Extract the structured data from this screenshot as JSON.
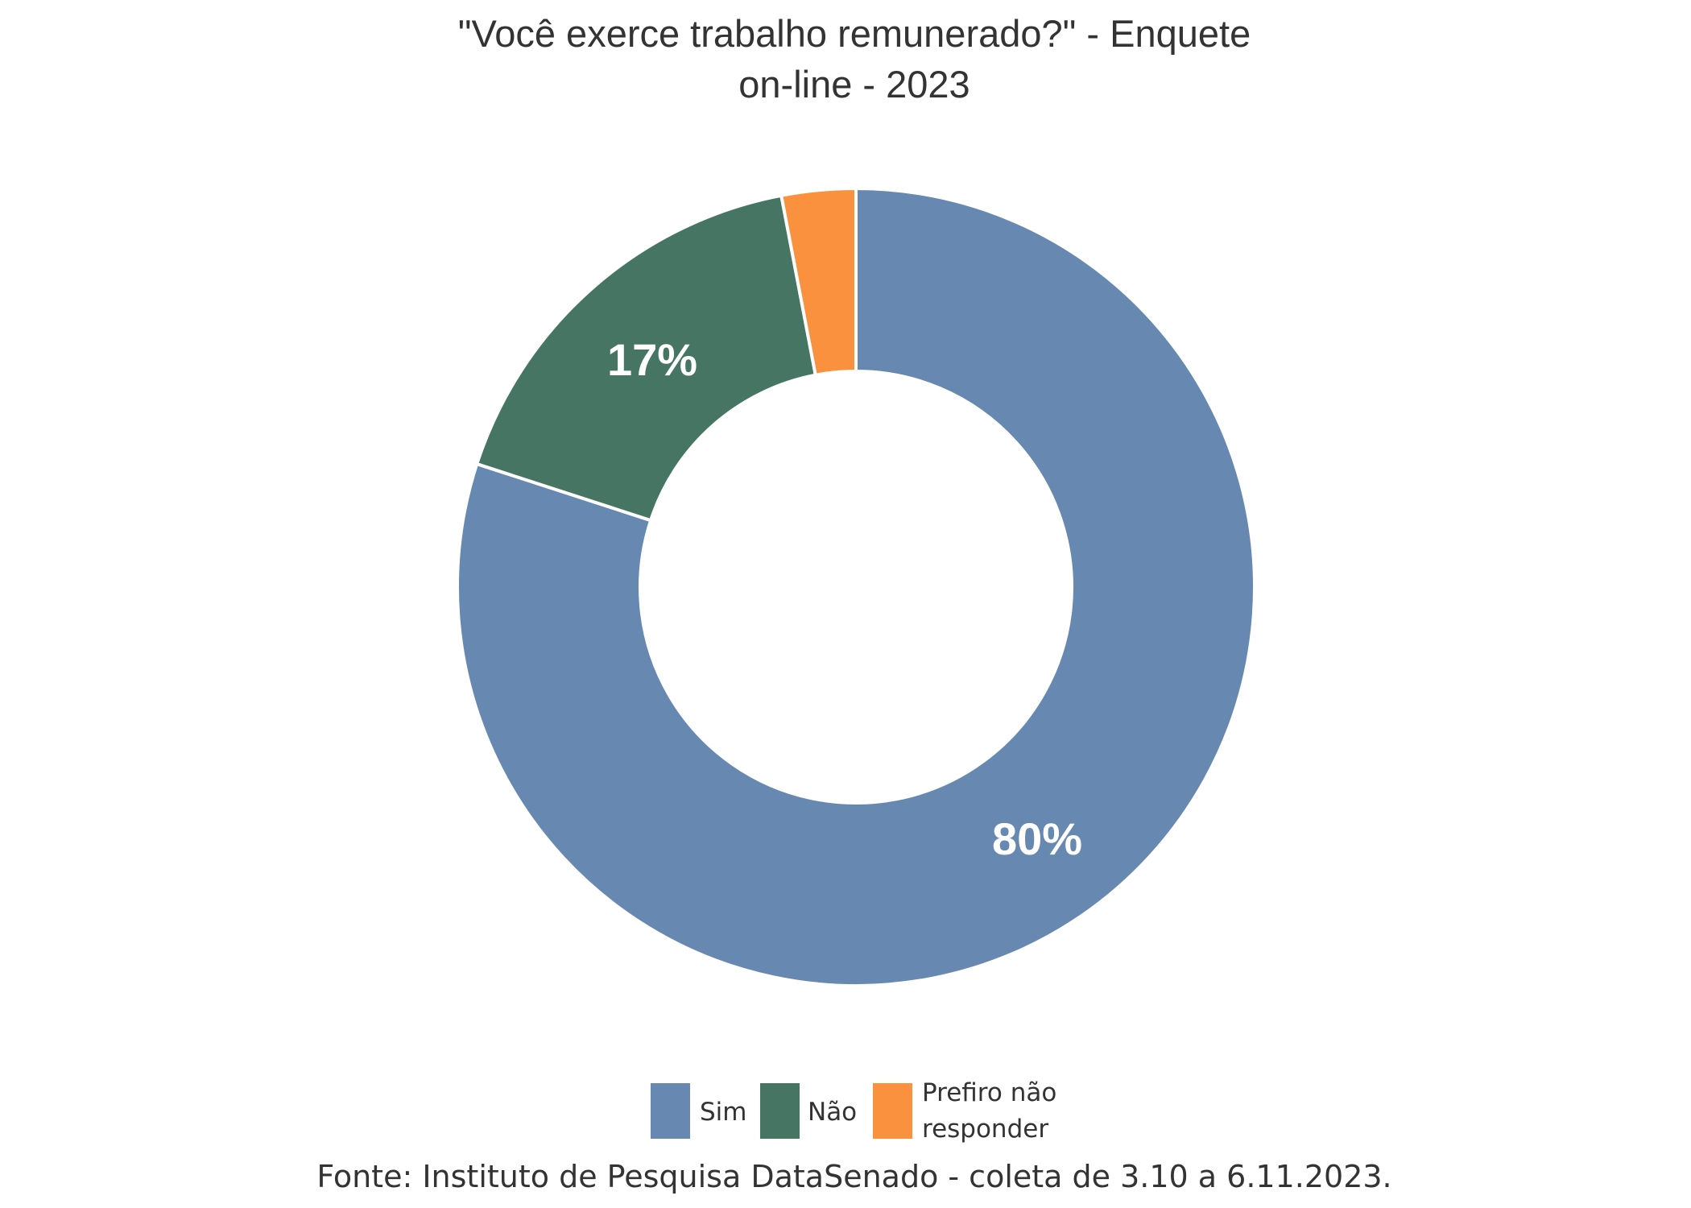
{
  "chart_data": {
    "type": "pie",
    "style": "donut",
    "title_lines": [
      "\"Você exerce trabalho remunerado?\" - Enquete",
      "on-line - 2023"
    ],
    "categories": [
      "Sim",
      "Não",
      "Prefiro não responder"
    ],
    "values": [
      80,
      17,
      3
    ],
    "data_labels": [
      "80%",
      "17%",
      ""
    ],
    "colors": [
      "#6789B1",
      "#467564",
      "#F9913E"
    ],
    "legend": {
      "placement": "bottom",
      "entries": [
        {
          "lines": [
            "Sim"
          ]
        },
        {
          "lines": [
            "Não"
          ]
        },
        {
          "lines": [
            "Prefiro não",
            "responder"
          ]
        }
      ]
    },
    "source": "Fonte: Instituto de Pesquisa DataSenado - coleta de 3.10 a 6.11.2023."
  }
}
